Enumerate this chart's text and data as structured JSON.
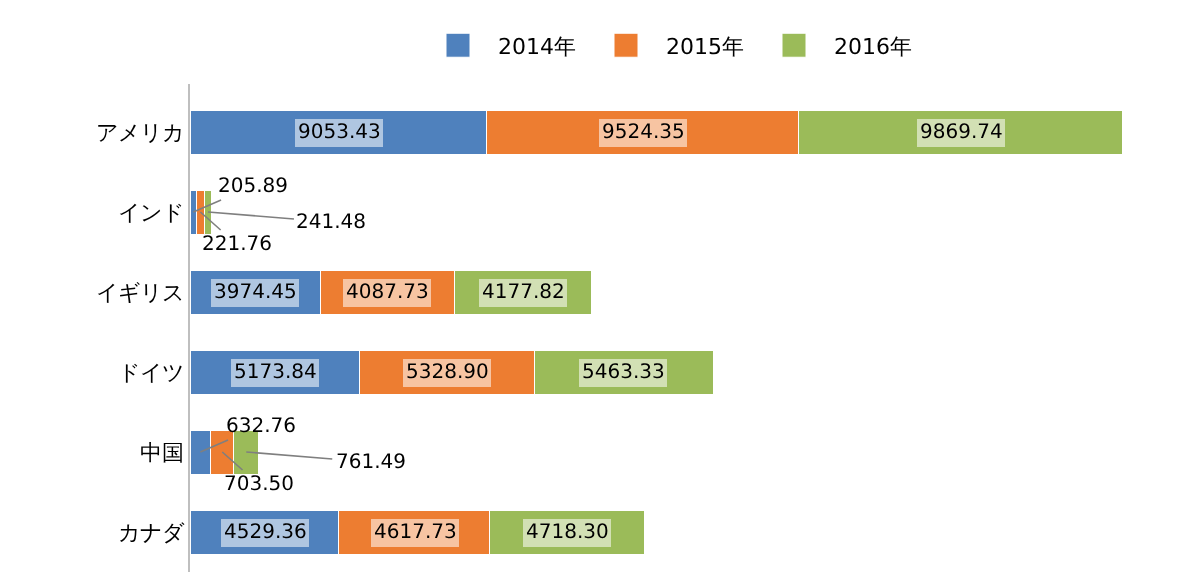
{
  "chart_data": {
    "type": "bar",
    "orientation": "horizontal",
    "stacked": true,
    "legend": "top",
    "tick_labels": "y",
    "categories": [
      "アメリカ",
      "インド",
      "イギリス",
      "ドイツ",
      "中国",
      "カナダ"
    ],
    "series": [
      {
        "name": "2014年",
        "color": "#4f81bd",
        "values": [
          9053.43,
          205.89,
          3974.45,
          5173.84,
          632.76,
          4529.36
        ],
        "value_labels": [
          "9053.43",
          "205.89",
          "3974.45",
          "5173.84",
          "632.76",
          "4529.36"
        ]
      },
      {
        "name": "2015年",
        "color": "#ed7d31",
        "values": [
          9524.35,
          221.76,
          4087.73,
          5328.9,
          703.5,
          4617.73
        ],
        "value_labels": [
          "9524.35",
          "221.76",
          "4087.73",
          "5328.90",
          "703.50",
          "4617.73"
        ]
      },
      {
        "name": "2016年",
        "color": "#9bbb59",
        "values": [
          9869.74,
          241.48,
          4177.82,
          5463.33,
          761.49,
          4718.3
        ],
        "value_labels": [
          "9869.74",
          "241.48",
          "4177.82",
          "5463.33",
          "761.49",
          "4718.30"
        ]
      }
    ]
  }
}
